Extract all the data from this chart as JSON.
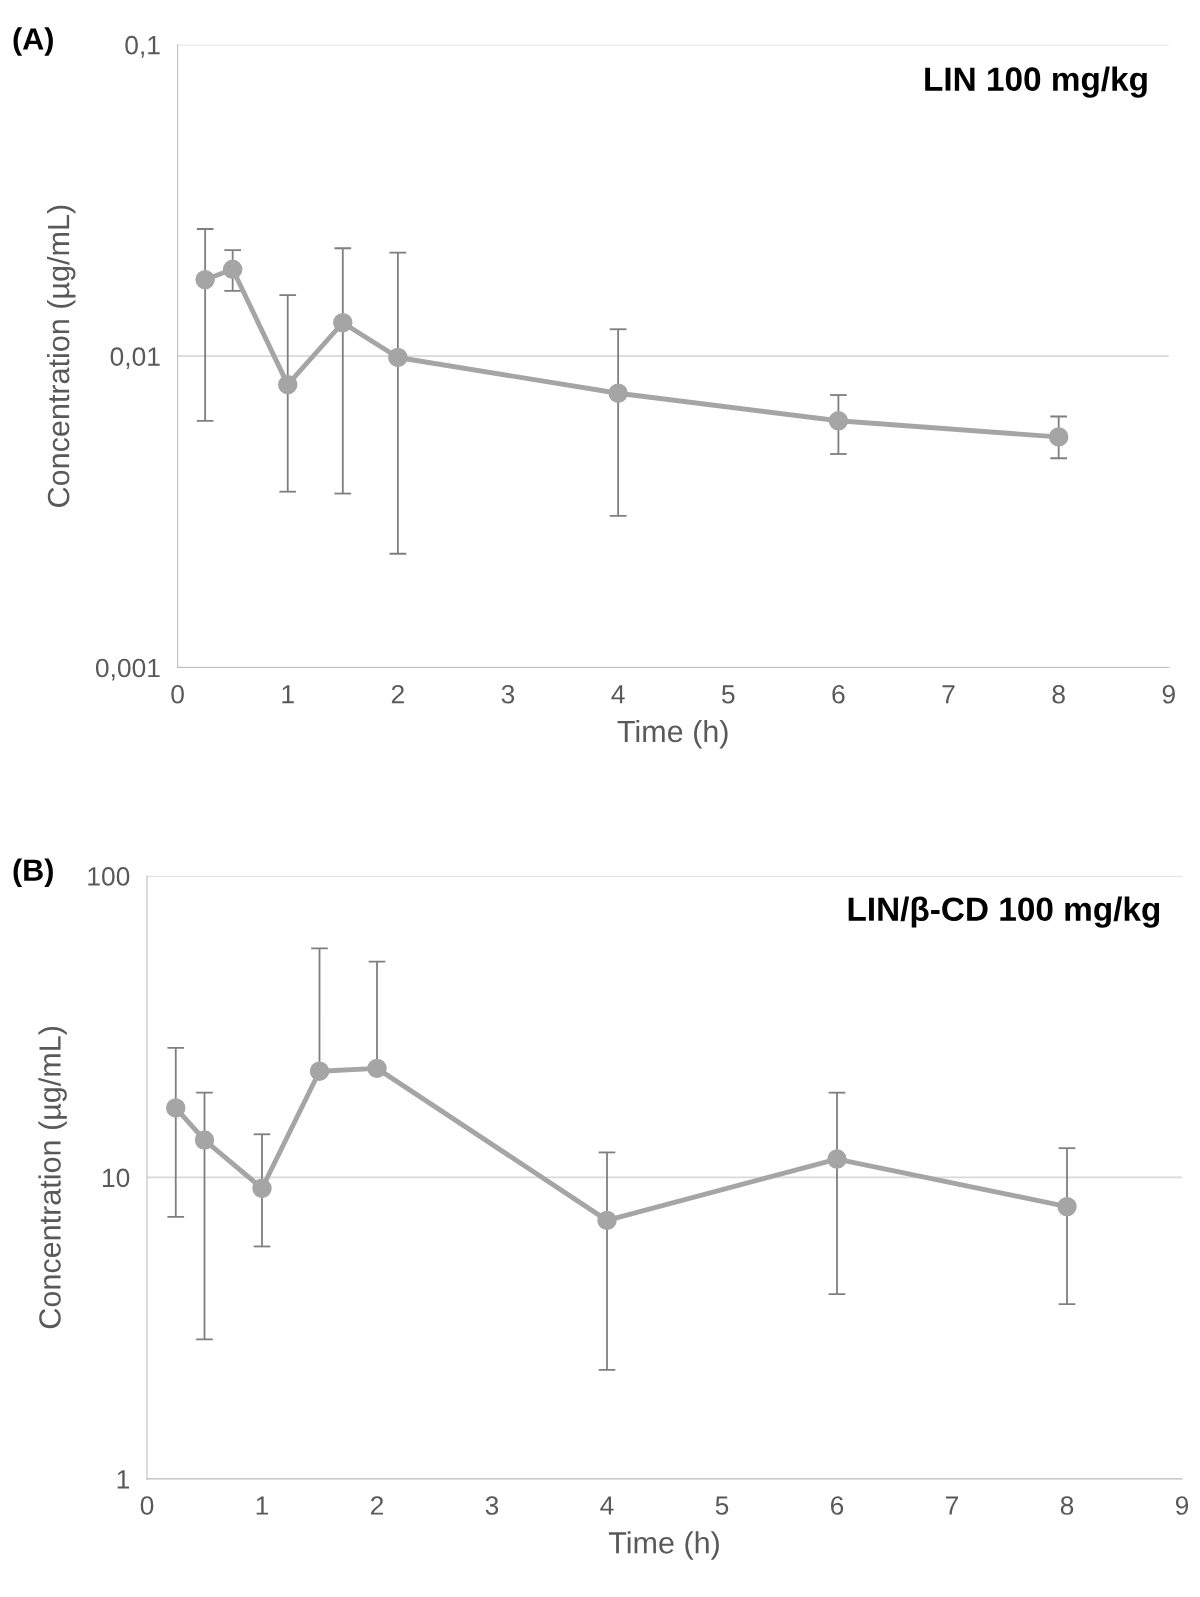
{
  "chart_data": [
    {
      "type": "line",
      "xlabel": "Time (h)",
      "ylabel": "Concentration (µg/mL)",
      "log": "y",
      "grid": "y",
      "marker": "circle",
      "line_style": "solid",
      "legend": false,
      "annotations": [
        "(A)",
        "LIN 100 mg/kg"
      ],
      "xlim": [
        0,
        9
      ],
      "xticks": [
        0,
        1,
        2,
        3,
        4,
        5,
        6,
        7,
        8,
        9
      ],
      "ylim": [
        0.001,
        0.1
      ],
      "yticks": [
        {
          "value": 0.001,
          "label": "0,001"
        },
        {
          "value": 0.01,
          "label": "0,01"
        },
        {
          "value": 0.1,
          "label": "0,1"
        }
      ],
      "series": [
        {
          "color": "#a5a5a5",
          "x": [
            0.25,
            0.5,
            1,
            1.5,
            2,
            4,
            6,
            8
          ],
          "values": [
            0.0176,
            0.019,
            0.0081,
            0.0128,
            0.0099,
            0.0076,
            0.0062,
            0.0055
          ],
          "errors": [
            [
              0.0062,
              0.0256
            ],
            [
              0.0162,
              0.0219
            ],
            [
              0.00367,
              0.0157
            ],
            [
              0.00362,
              0.0222
            ],
            [
              0.00232,
              0.0215
            ],
            [
              0.00307,
              0.0122
            ],
            [
              0.00485,
              0.0075
            ],
            [
              0.0047,
              0.0064
            ]
          ]
        }
      ]
    },
    {
      "type": "line",
      "xlabel": "Time (h)",
      "ylabel": "Concentration (µg/mL)",
      "log": "y",
      "grid": "y",
      "marker": "circle",
      "line_style": "solid",
      "legend": false,
      "annotations": [
        "(B)",
        "LIN/β-CD 100 mg/kg"
      ],
      "xlim": [
        0,
        9
      ],
      "xticks": [
        0,
        1,
        2,
        3,
        4,
        5,
        6,
        7,
        8,
        9
      ],
      "ylim": [
        1,
        100
      ],
      "yticks": [
        1,
        10,
        100
      ],
      "series": [
        {
          "color": "#a5a5a5",
          "x": [
            0.25,
            0.5,
            1,
            1.5,
            2,
            4,
            6,
            8
          ],
          "values": [
            17.0,
            13.3,
            9.2,
            22.5,
            23.0,
            7.2,
            11.5,
            8.0
          ],
          "errors": [
            [
              7.4,
              26.9
            ],
            [
              2.9,
              19.1
            ],
            [
              5.9,
              13.9
            ],
            [
              22.5,
              57.5
            ],
            [
              23.0,
              52.0
            ],
            [
              2.3,
              12.1
            ],
            [
              4.1,
              19.1
            ],
            [
              3.8,
              12.5
            ]
          ]
        }
      ]
    }
  ]
}
